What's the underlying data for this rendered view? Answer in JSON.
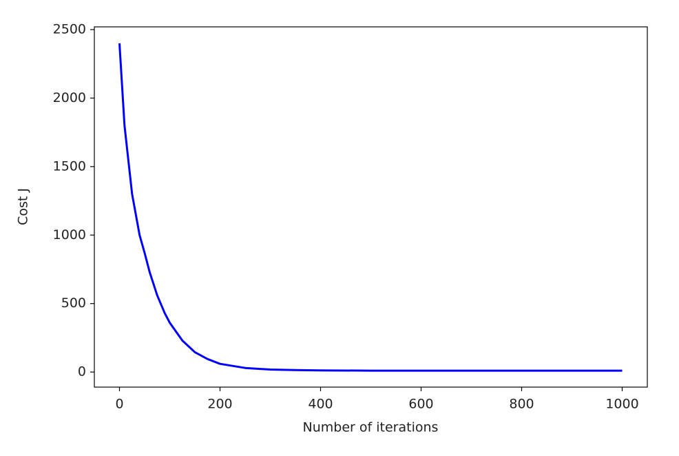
{
  "chart_data": {
    "type": "line",
    "xlabel": "Number of iterations",
    "ylabel": "Cost J",
    "x": [
      0,
      10,
      25,
      40,
      50,
      60,
      75,
      90,
      100,
      125,
      150,
      175,
      200,
      250,
      300,
      350,
      400,
      500,
      600,
      700,
      800,
      900,
      1000
    ],
    "series": [
      {
        "color": "#0000ff",
        "values": [
          2400,
          1800,
          1300,
          1000,
          870,
          730,
          560,
          430,
          360,
          230,
          145,
          95,
          60,
          30,
          18,
          14,
          12,
          10,
          10,
          10,
          10,
          10,
          10
        ]
      }
    ],
    "xlim": [
      -50,
      1050
    ],
    "xticks": [
      0,
      200,
      400,
      600,
      800,
      1000
    ],
    "ylim": [
      -110,
      2520
    ],
    "yticks": [
      0,
      500,
      1000,
      1500,
      2000,
      2500
    ]
  }
}
